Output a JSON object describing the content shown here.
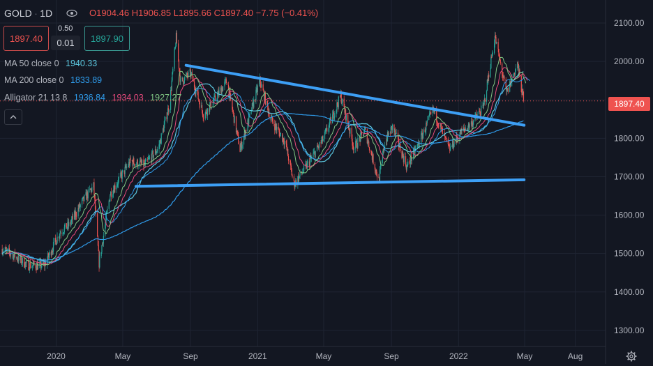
{
  "header": {
    "symbol": "GOLD",
    "interval": "1D",
    "open": "O1904.46",
    "high": "H1906.85",
    "low": "L1895.66",
    "close": "C1897.40",
    "change": "−7.75 (−0.41%)"
  },
  "trade": {
    "sell_price": "1897.40",
    "spread": "0.50",
    "qty": "0.01",
    "buy_price": "1897.90"
  },
  "indicators": {
    "ma50_label": "MA 50 close 0",
    "ma50_value": "1940.33",
    "ma200_label": "MA 200 close 0",
    "ma200_value": "1833.89",
    "alligator_label": "Alligator 21 13 8",
    "alligator_jaw": "1936.84",
    "alligator_teeth": "1934.03",
    "alligator_lips": "1927.27"
  },
  "price_scale": {
    "last_price_label": "1897.40"
  },
  "colors": {
    "background": "#131722",
    "up": "#26a69a",
    "down": "#ef5350",
    "ma50": "#5cc8e0",
    "ma200": "#2f9bea",
    "jaw": "#2f9bea",
    "teeth": "#e84a7d",
    "lips": "#81c784",
    "trendline": "#3d9ff5"
  },
  "icons": {
    "visibility": "eye-icon",
    "collapse": "chevron-up-icon",
    "settings": "gear-icon"
  },
  "chart_data": {
    "type": "candlestick",
    "symbol": "GOLD",
    "interval": "1D",
    "x_ticks": [
      "2020",
      "May",
      "Sep",
      "2021",
      "May",
      "Sep",
      "2022",
      "May",
      "Aug"
    ],
    "y_ticks": [
      1300,
      1400,
      1500,
      1600,
      1700,
      1800,
      1900,
      2000,
      2100
    ],
    "ylim": [
      1258,
      2160
    ],
    "xlim": [
      "2019-09-21",
      "2022-09-25"
    ],
    "last_price": 1897.4,
    "price_path": [
      [
        "2019-09-25",
        1512
      ],
      [
        "2019-10-15",
        1496
      ],
      [
        "2019-11-10",
        1470
      ],
      [
        "2019-12-10",
        1468
      ],
      [
        "2020-01-08",
        1556
      ],
      [
        "2020-01-25",
        1575
      ],
      [
        "2020-02-20",
        1640
      ],
      [
        "2020-03-09",
        1675
      ],
      [
        "2020-03-19",
        1475
      ],
      [
        "2020-04-08",
        1655
      ],
      [
        "2020-05-15",
        1740
      ],
      [
        "2020-06-10",
        1730
      ],
      [
        "2020-07-05",
        1775
      ],
      [
        "2020-07-25",
        1890
      ],
      [
        "2020-08-06",
        2062
      ],
      [
        "2020-08-14",
        1945
      ],
      [
        "2020-09-01",
        1970
      ],
      [
        "2020-09-25",
        1860
      ],
      [
        "2020-10-15",
        1900
      ],
      [
        "2020-11-06",
        1950
      ],
      [
        "2020-11-30",
        1770
      ],
      [
        "2021-01-05",
        1950
      ],
      [
        "2021-01-25",
        1850
      ],
      [
        "2021-02-20",
        1790
      ],
      [
        "2021-03-08",
        1680
      ],
      [
        "2021-04-01",
        1730
      ],
      [
        "2021-05-01",
        1800
      ],
      [
        "2021-06-01",
        1910
      ],
      [
        "2021-06-25",
        1775
      ],
      [
        "2021-07-15",
        1820
      ],
      [
        "2021-08-09",
        1690
      ],
      [
        "2021-08-20",
        1790
      ],
      [
        "2021-09-03",
        1830
      ],
      [
        "2021-09-29",
        1725
      ],
      [
        "2021-10-20",
        1785
      ],
      [
        "2021-11-16",
        1875
      ],
      [
        "2021-12-15",
        1770
      ],
      [
        "2022-01-05",
        1815
      ],
      [
        "2022-01-25",
        1840
      ],
      [
        "2022-02-15",
        1880
      ],
      [
        "2022-03-08",
        2065
      ],
      [
        "2022-03-29",
        1915
      ],
      [
        "2022-04-18",
        1995
      ],
      [
        "2022-04-25",
        1930
      ],
      [
        "2022-04-30",
        1897.4
      ]
    ],
    "moving_averages": [
      {
        "name": "MA 50 close 0",
        "period": 50,
        "last_value": 1940.33
      },
      {
        "name": "MA 200 close 0",
        "period": 200,
        "last_value": 1833.89
      }
    ],
    "alligator": {
      "periods": [
        21,
        13,
        8
      ],
      "jaw": 1936.84,
      "teeth": 1934.03,
      "lips": 1927.27
    },
    "trendlines": [
      {
        "from": [
          "2020-08-24",
          1990
        ],
        "to": [
          "2022-04-30",
          1834
        ]
      },
      {
        "from": [
          "2020-05-25",
          1675
        ],
        "to": [
          "2022-04-30",
          1692
        ]
      }
    ]
  }
}
